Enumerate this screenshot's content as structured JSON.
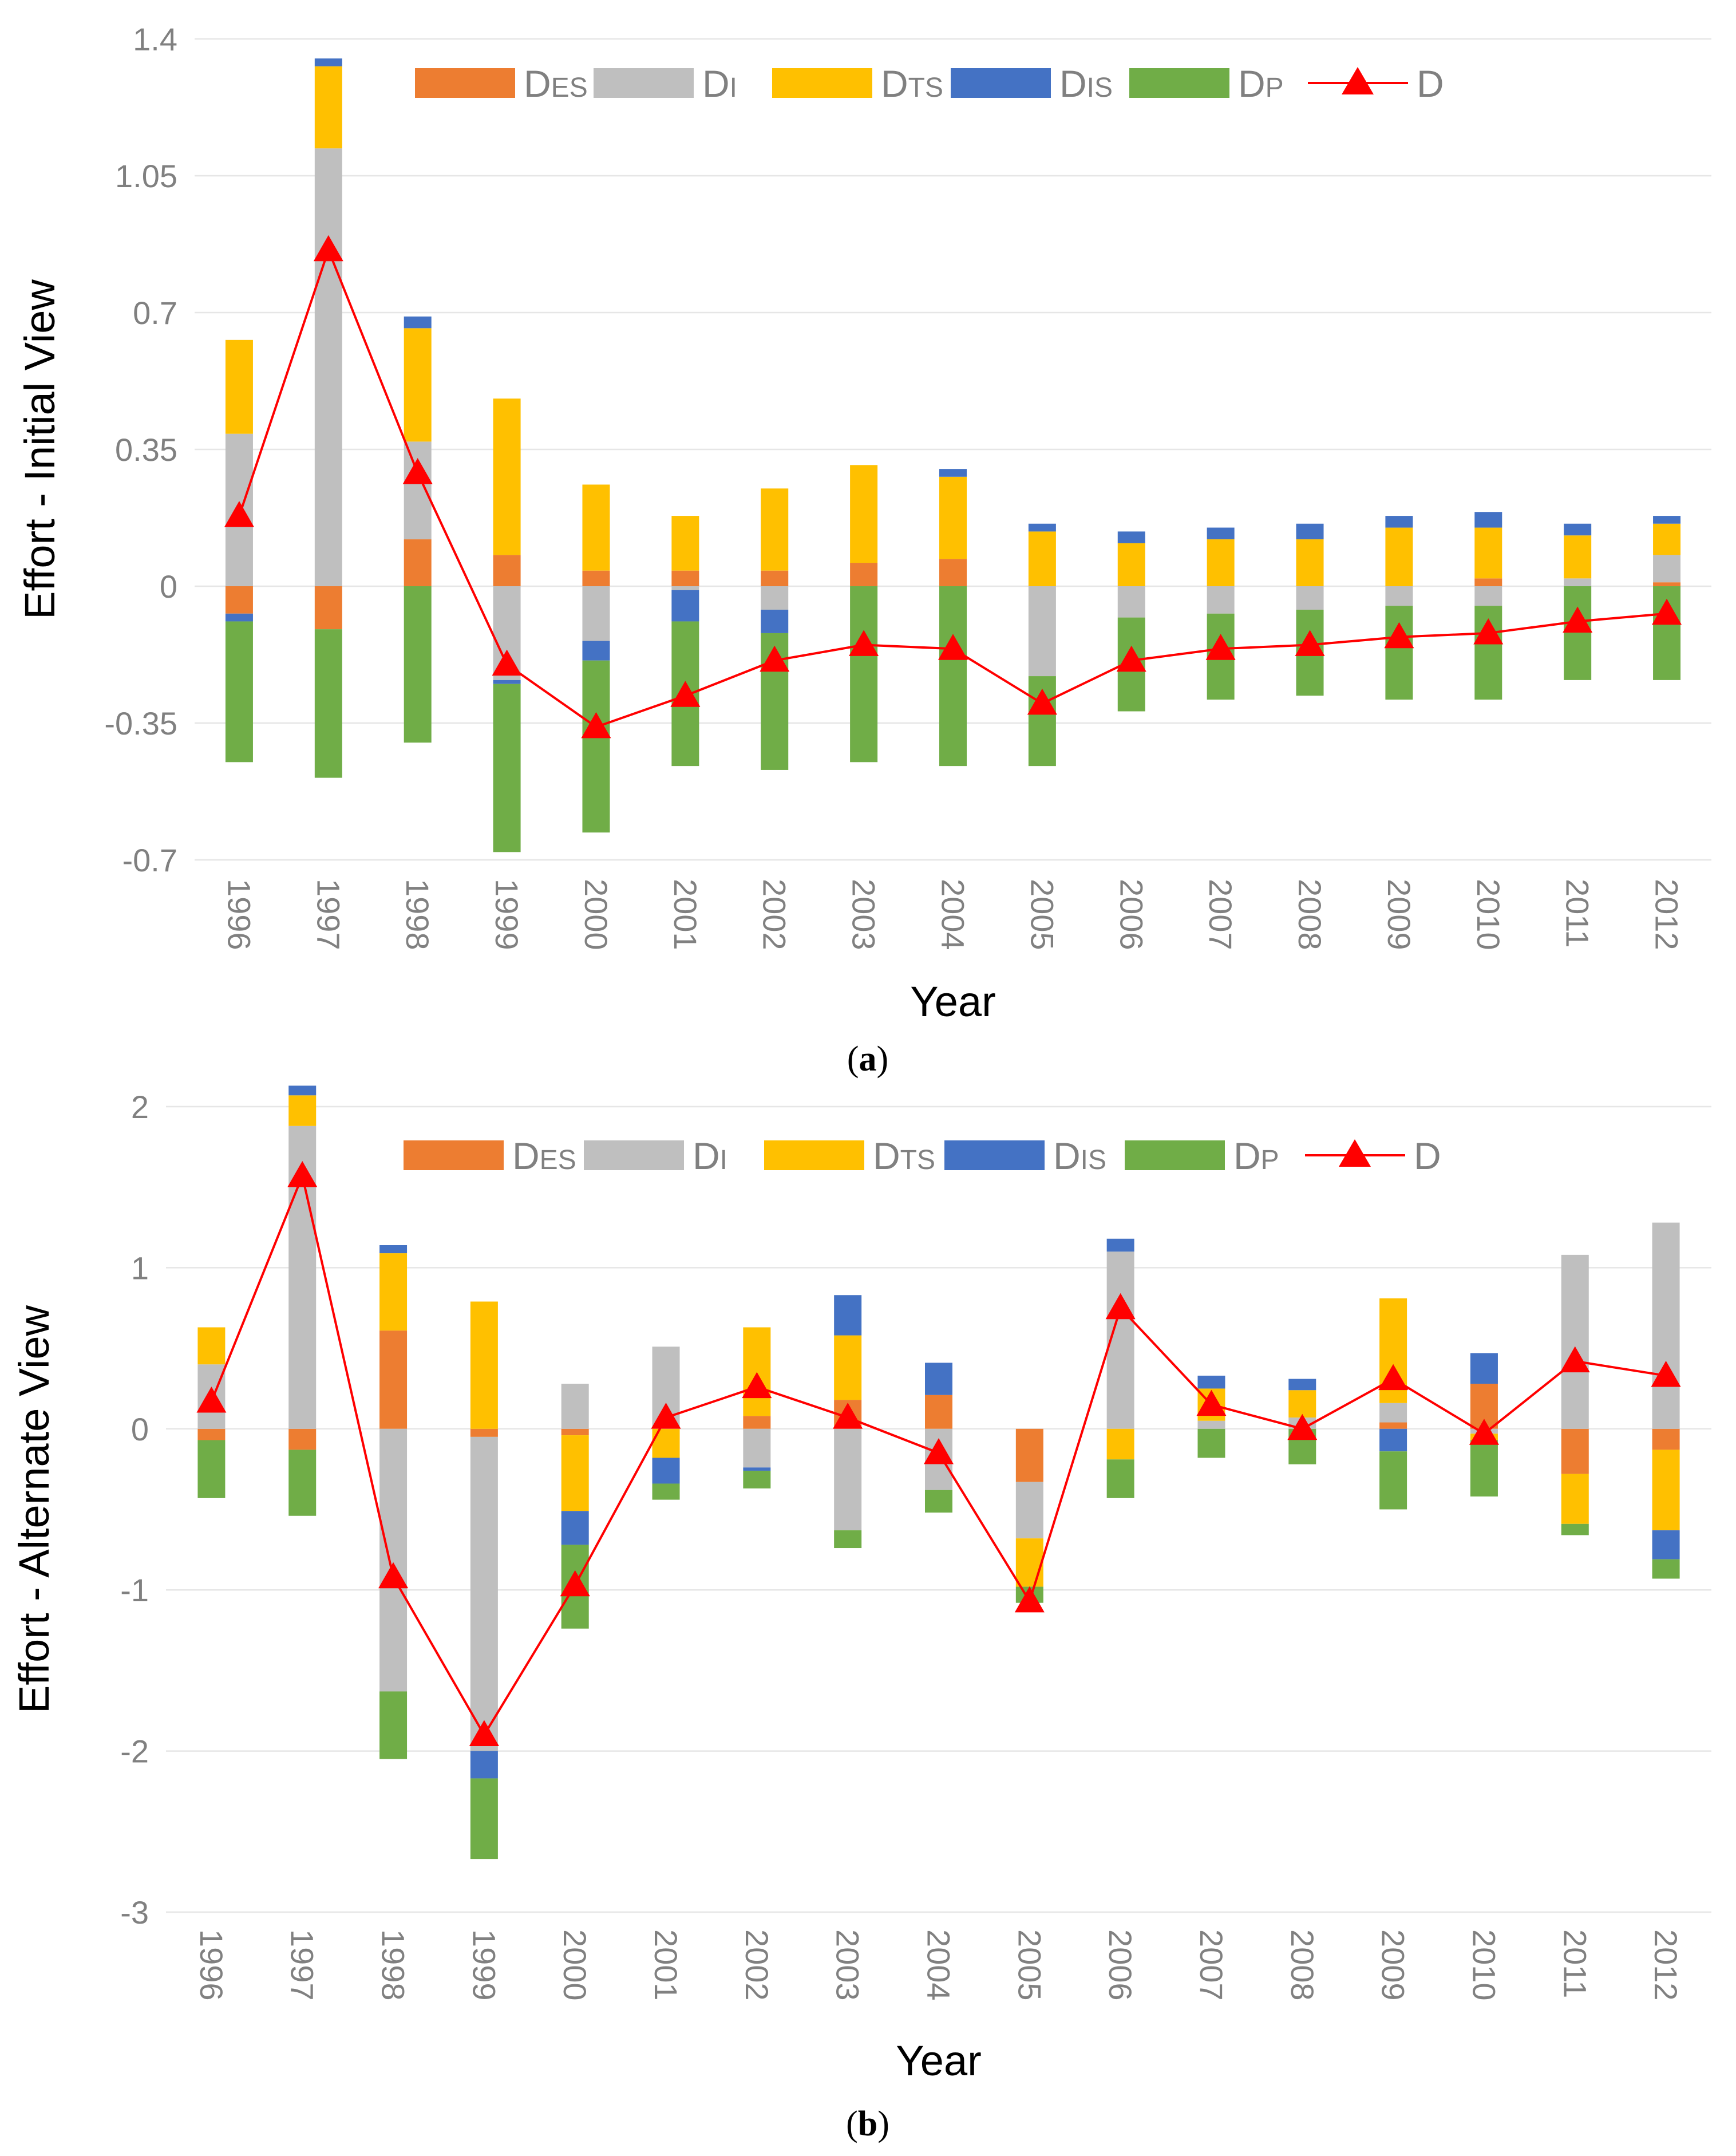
{
  "colors": {
    "D_ES": "#ED7D31",
    "D_I": "#BFBFBF",
    "D_TS": "#FFC000",
    "D_IS": "#4472C4",
    "D_P": "#70AD47",
    "D": "#FF0000"
  },
  "chart_data": [
    {
      "type": "bar",
      "stacked": true,
      "caption": {
        "open": "(",
        "letter": "a",
        "close": ")"
      },
      "xlabel": "Year",
      "ylabel": "Effort - Initial View",
      "ylim": [
        -0.7,
        1.4
      ],
      "yticks": [
        -0.7,
        -0.35,
        0,
        0.35,
        0.7,
        1.05,
        1.4
      ],
      "ytick_labels": [
        "-0.7",
        "-0.35",
        "0",
        "0.35",
        "0.7",
        "1.05",
        "1.4"
      ],
      "grid": true,
      "legend_position": "top",
      "categories": [
        "1996",
        "1997",
        "1998",
        "1999",
        "2000",
        "2001",
        "2002",
        "2003",
        "2004",
        "2005",
        "2006",
        "2007",
        "2008",
        "2009",
        "2010",
        "2011",
        "2012"
      ],
      "series": [
        {
          "key": "D_ES",
          "name": "D",
          "sub": "ES",
          "values": [
            -0.07,
            -0.11,
            0.12,
            0.08,
            0.04,
            0.04,
            0.04,
            0.06,
            0.07,
            0.0,
            0.0,
            0.0,
            0.0,
            0.0,
            0.02,
            0.0,
            0.01
          ]
        },
        {
          "key": "D_I",
          "name": "D",
          "sub": "I",
          "values": [
            0.39,
            1.12,
            0.25,
            -0.24,
            -0.14,
            -0.01,
            -0.06,
            0.0,
            0.0,
            -0.23,
            -0.08,
            -0.07,
            -0.06,
            -0.05,
            -0.05,
            0.02,
            0.07
          ]
        },
        {
          "key": "D_TS",
          "name": "D",
          "sub": "TS",
          "values": [
            0.24,
            0.21,
            0.29,
            0.4,
            0.22,
            0.14,
            0.21,
            0.25,
            0.21,
            0.14,
            0.11,
            0.12,
            0.12,
            0.15,
            0.13,
            0.11,
            0.08
          ]
        },
        {
          "key": "D_IS",
          "name": "D",
          "sub": "IS",
          "values": [
            -0.02,
            0.02,
            0.03,
            -0.01,
            -0.05,
            -0.08,
            -0.06,
            0.0,
            0.02,
            0.02,
            0.03,
            0.03,
            0.04,
            0.03,
            0.04,
            0.03,
            0.02
          ]
        },
        {
          "key": "D_P",
          "name": "D",
          "sub": "P",
          "values": [
            -0.36,
            -0.38,
            -0.4,
            -0.43,
            -0.44,
            -0.37,
            -0.35,
            -0.45,
            -0.46,
            -0.23,
            -0.24,
            -0.22,
            -0.22,
            -0.24,
            -0.24,
            -0.24,
            -0.24
          ]
        }
      ],
      "line": {
        "key": "D",
        "name": "D",
        "values": [
          0.18,
          0.86,
          0.29,
          -0.2,
          -0.36,
          -0.28,
          -0.19,
          -0.15,
          -0.16,
          -0.3,
          -0.19,
          -0.16,
          -0.15,
          -0.13,
          -0.12,
          -0.09,
          -0.07
        ]
      }
    },
    {
      "type": "bar",
      "stacked": true,
      "caption": {
        "open": "(",
        "letter": "b",
        "close": ")"
      },
      "xlabel": "Year",
      "ylabel": "Effort - Alternate View",
      "ylim": [
        -3,
        2
      ],
      "yticks": [
        -3,
        -2,
        -1,
        0,
        1,
        2
      ],
      "ytick_labels": [
        "-3",
        "-2",
        "-1",
        "0",
        "1",
        "2"
      ],
      "grid": true,
      "legend_position": "top",
      "categories": [
        "1996",
        "1997",
        "1998",
        "1999",
        "2000",
        "2001",
        "2002",
        "2003",
        "2004",
        "2005",
        "2006",
        "2007",
        "2008",
        "2009",
        "2010",
        "2011",
        "2012"
      ],
      "series": [
        {
          "key": "D_ES",
          "name": "D",
          "sub": "ES",
          "values": [
            -0.07,
            -0.13,
            0.61,
            -0.05,
            -0.04,
            0.0,
            0.08,
            0.18,
            0.21,
            -0.33,
            0.0,
            0.0,
            0.0,
            0.04,
            0.28,
            -0.28,
            -0.13
          ]
        },
        {
          "key": "D_I",
          "name": "D",
          "sub": "I",
          "values": [
            0.4,
            1.88,
            -1.63,
            -1.95,
            0.28,
            0.51,
            -0.24,
            -0.63,
            -0.38,
            -0.35,
            1.1,
            0.05,
            0.07,
            0.12,
            -0.03,
            1.08,
            1.28
          ]
        },
        {
          "key": "D_TS",
          "name": "D",
          "sub": "TS",
          "values": [
            0.23,
            0.19,
            0.48,
            0.79,
            -0.47,
            -0.18,
            0.55,
            0.4,
            0.0,
            -0.3,
            -0.19,
            0.2,
            0.17,
            0.65,
            -0.04,
            -0.31,
            -0.5
          ]
        },
        {
          "key": "D_IS",
          "name": "D",
          "sub": "IS",
          "values": [
            0.0,
            0.06,
            0.05,
            -0.17,
            -0.21,
            -0.16,
            -0.02,
            0.25,
            0.2,
            0.0,
            0.08,
            0.08,
            0.07,
            -0.14,
            0.19,
            0.0,
            -0.18
          ]
        },
        {
          "key": "D_P",
          "name": "D",
          "sub": "P",
          "values": [
            -0.36,
            -0.41,
            -0.42,
            -0.5,
            -0.52,
            -0.1,
            -0.11,
            -0.11,
            -0.14,
            -0.1,
            -0.24,
            -0.18,
            -0.22,
            -0.36,
            -0.35,
            -0.07,
            -0.12
          ]
        }
      ],
      "line": {
        "key": "D",
        "name": "D",
        "values": [
          0.17,
          1.57,
          -0.92,
          -1.9,
          -0.97,
          0.07,
          0.26,
          0.07,
          -0.15,
          -1.07,
          0.75,
          0.15,
          0.0,
          0.31,
          -0.03,
          0.42,
          0.33
        ]
      }
    }
  ]
}
